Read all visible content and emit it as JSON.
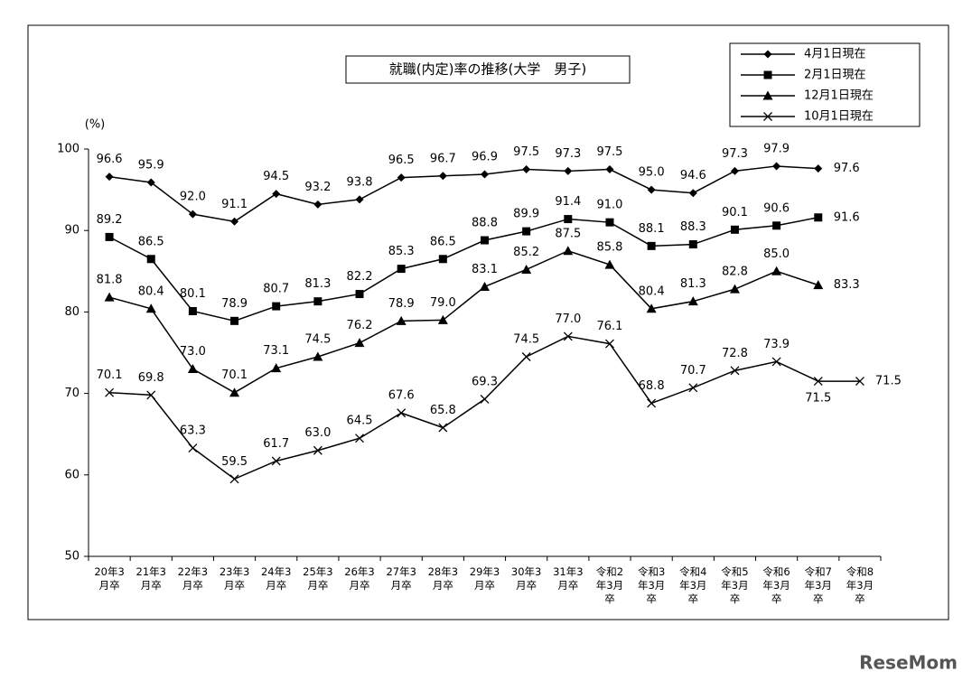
{
  "chart_data": {
    "type": "line",
    "title": "就職(内定)率の推移(大学　男子)",
    "y_label": "(%)",
    "categories": [
      "20年3月卒",
      "21年3月卒",
      "22年3月卒",
      "23年3月卒",
      "24年3月卒",
      "25年3月卒",
      "26年3月卒",
      "27年3月卒",
      "28年3月卒",
      "29年3月卒",
      "30年3月卒",
      "31年3月卒",
      "令和2年3月卒",
      "令和3年3月卒",
      "令和4年3月卒",
      "令和5年3月卒",
      "令和6年3月卒",
      "令和7年3月卒",
      "令和8年3月卒"
    ],
    "ylim": [
      50,
      100
    ],
    "yticks": [
      50,
      60,
      70,
      80,
      90,
      100
    ],
    "legend": "top-right",
    "series": [
      {
        "name": "4月1日現在",
        "color": "#000000",
        "marker": "diamond",
        "values": [
          96.6,
          95.9,
          92.0,
          91.1,
          94.5,
          93.2,
          93.8,
          96.5,
          96.7,
          96.9,
          97.5,
          97.3,
          97.5,
          95.0,
          94.6,
          97.3,
          97.9,
          97.6,
          null
        ],
        "value_labels": [
          "96.6",
          "95.9",
          "92.0",
          "91.1",
          "94.5",
          "93.2",
          "93.8",
          "96.5",
          "96.7",
          "96.9",
          "97.5",
          "97.3",
          "97.5",
          "95.0",
          "94.6",
          "97.3",
          "97.9",
          "97.6",
          null
        ]
      },
      {
        "name": "2月1日現在",
        "color": "#000000",
        "marker": "square",
        "values": [
          89.2,
          86.5,
          80.1,
          78.9,
          80.7,
          81.3,
          82.2,
          85.3,
          86.5,
          88.8,
          89.9,
          91.4,
          91.0,
          88.1,
          88.3,
          90.1,
          90.6,
          91.6,
          null
        ],
        "value_labels": [
          "89.2",
          "86.5",
          "80.1",
          "78.9",
          "80.7",
          "81.3",
          "82.2",
          "85.3",
          "86.5",
          "88.8",
          "89.9",
          "91.4",
          "91.0",
          "88.1",
          "88.3",
          "90.1",
          "90.6",
          "91.6",
          null
        ]
      },
      {
        "name": "12月1日現在",
        "color": "#000000",
        "marker": "triangle",
        "values": [
          81.8,
          80.4,
          73.0,
          70.1,
          73.1,
          74.5,
          76.2,
          78.9,
          79.0,
          83.1,
          85.2,
          87.5,
          85.8,
          80.4,
          81.3,
          82.8,
          85.0,
          83.3,
          null
        ],
        "value_labels": [
          "81.8",
          "80.4",
          "73.0",
          "70.1",
          "73.1",
          "74.5",
          "76.2",
          "78.9",
          "79.0",
          "83.1",
          "85.2",
          "87.5",
          "85.8",
          "80.4",
          "81.3",
          "82.8",
          "85.0",
          "83.3",
          null
        ]
      },
      {
        "name": "10月1日現在",
        "color": "#000000",
        "marker": "x",
        "values": [
          70.1,
          69.8,
          63.3,
          59.5,
          61.7,
          63.0,
          64.5,
          67.6,
          65.8,
          69.3,
          74.5,
          77.0,
          76.1,
          68.8,
          70.7,
          72.8,
          73.9,
          71.5,
          71.5
        ],
        "value_labels": [
          "70.1",
          "69.8",
          "63.3",
          "59.5",
          "61.7",
          "63.0",
          "64.5",
          "67.6",
          "65.8",
          "69.3",
          "74.5",
          "77.0",
          "76.1",
          "68.8",
          "70.7",
          "72.8",
          "73.9",
          "71.5",
          "71.5"
        ]
      }
    ],
    "watermark": "ReseMom"
  }
}
